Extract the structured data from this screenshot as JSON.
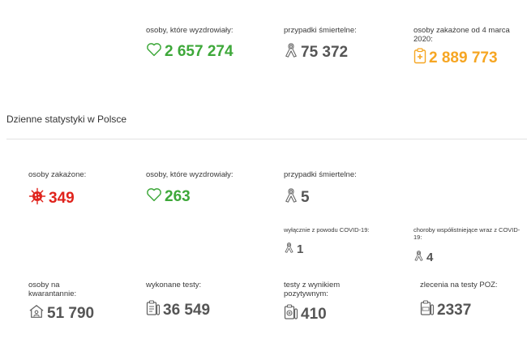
{
  "totals": {
    "recovered": {
      "label": "osoby, które wyzdrowiały:",
      "value": "2 657 274",
      "icon": "heart-icon"
    },
    "deaths": {
      "label": "przypadki śmiertelne:",
      "value": "75 372",
      "icon": "ribbon-icon"
    },
    "infected": {
      "label": "osoby zakażone od 4 marca 2020:",
      "value": "2 889 773",
      "icon": "medical-clipboard-icon"
    }
  },
  "section": {
    "title": "Dzienne statystyki w Polsce"
  },
  "daily": {
    "infected": {
      "label": "osoby zakażone:",
      "value": "349",
      "icon": "virus-icon"
    },
    "recovered": {
      "label": "osoby, które wyzdrowiały:",
      "value": "263",
      "icon": "heart-icon"
    },
    "deaths": {
      "label": "przypadki śmiertelne:",
      "value": "5",
      "icon": "ribbon-icon"
    },
    "deaths_covid_only": {
      "label": "wyłącznie z powodu COVID-19:",
      "value": "1",
      "icon": "ribbon-icon"
    },
    "deaths_comorbid": {
      "label": "choroby współistniejące wraz z COVID-19:",
      "value": "4",
      "icon": "ribbon-icon"
    },
    "quarantine": {
      "label": "osoby na kwarantannie:",
      "value": "51 790",
      "icon": "house-icon"
    },
    "tests": {
      "label": "wykonane testy:",
      "value": "36 549",
      "icon": "test-clipboard-icon"
    },
    "positive_tests": {
      "label": "testy z wynikiem pozytywnym:",
      "value": "410",
      "icon": "positive-test-icon"
    },
    "poz_orders": {
      "label": "zlecenia na testy POZ:",
      "value": "2337",
      "icon": "poz-test-icon"
    }
  },
  "colors": {
    "green": "#3ea83a",
    "grey": "#555555",
    "orange": "#f6a623",
    "red": "#e0231c"
  }
}
